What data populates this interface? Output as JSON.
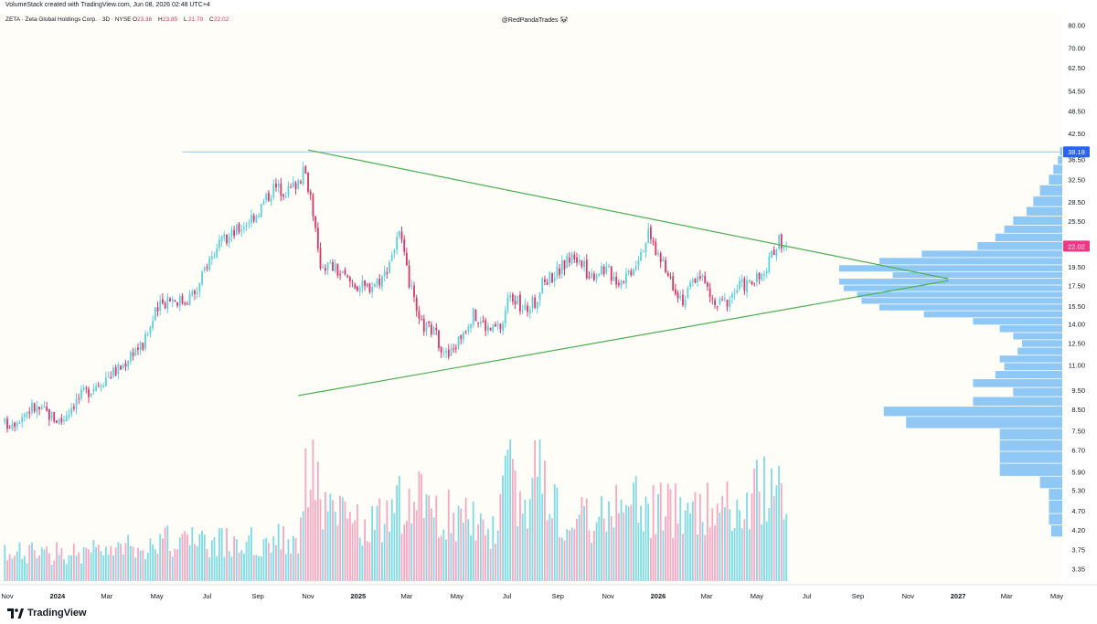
{
  "header": {
    "created_line": "VolumeStack created with TradingView.com, Jun 08, 2026 02:48 UTC+4",
    "symbol_line": "ZETA · Zeta Global Holdings Corp. · 3D · NYSE",
    "ohlc": [
      {
        "key": "O",
        "value": "23.36"
      },
      {
        "key": "H",
        "value": "23.85"
      },
      {
        "key": "L",
        "value": "21.70"
      },
      {
        "key": "C",
        "value": "22.02"
      }
    ],
    "watermark": "@RedPandaTrades 🐼"
  },
  "footer": {
    "brand": "TradingView"
  },
  "colors": {
    "up": "#5fd0dc",
    "down": "#d8386e",
    "vol_up": "#7fdbe6",
    "vol_down": "#f5a9c4",
    "vp": "#90c8f5",
    "trend": "#4caf50",
    "resistance": "#9ec3ee",
    "badge_resistance": "#2962ff",
    "badge_price": "#f23683",
    "background": "#fffdf7"
  },
  "chart_data": {
    "type": "candlestick",
    "symbol": "ZETA",
    "interval": "3D",
    "yscale": "log",
    "ylim": [
      3.05,
      86.0
    ],
    "price_ticks": [
      "80.00",
      "70.00",
      "62.50",
      "54.50",
      "48.50",
      "42.50",
      "36.50",
      "32.50",
      "28.50",
      "25.50",
      "22.50",
      "19.50",
      "17.50",
      "15.50",
      "14.00",
      "12.50",
      "11.00",
      "9.50",
      "8.50",
      "7.50",
      "6.70",
      "5.90",
      "5.30",
      "4.70",
      "4.20",
      "3.75",
      "3.35"
    ],
    "time_ticks": [
      {
        "label": "Nov",
        "date": "2023-11-01",
        "bold": false
      },
      {
        "label": "2024",
        "date": "2024-01-01",
        "bold": true
      },
      {
        "label": "Mar",
        "date": "2024-03-01",
        "bold": false
      },
      {
        "label": "May",
        "date": "2024-05-01",
        "bold": false
      },
      {
        "label": "Jul",
        "date": "2024-07-01",
        "bold": false
      },
      {
        "label": "Sep",
        "date": "2024-09-01",
        "bold": false
      },
      {
        "label": "Nov",
        "date": "2024-11-01",
        "bold": false
      },
      {
        "label": "2025",
        "date": "2025-01-01",
        "bold": true
      },
      {
        "label": "Mar",
        "date": "2025-03-01",
        "bold": false
      },
      {
        "label": "May",
        "date": "2025-05-01",
        "bold": false
      },
      {
        "label": "Jul",
        "date": "2025-07-01",
        "bold": false
      },
      {
        "label": "Sep",
        "date": "2025-09-01",
        "bold": false
      },
      {
        "label": "Nov",
        "date": "2025-11-01",
        "bold": false
      },
      {
        "label": "2026",
        "date": "2026-01-01",
        "bold": true
      },
      {
        "label": "Mar",
        "date": "2026-03-01",
        "bold": false
      },
      {
        "label": "May",
        "date": "2026-05-01",
        "bold": false
      },
      {
        "label": "Jul",
        "date": "2026-07-01",
        "bold": false
      },
      {
        "label": "Sep",
        "date": "2026-09-01",
        "bold": false
      },
      {
        "label": "Nov",
        "date": "2026-11-01",
        "bold": false
      },
      {
        "label": "2027",
        "date": "2027-01-01",
        "bold": true
      },
      {
        "label": "Mar",
        "date": "2027-03-01",
        "bold": false
      },
      {
        "label": "May",
        "date": "2027-05-01",
        "bold": false
      }
    ],
    "price_path": [
      [
        "2023-10-31",
        7.8
      ],
      [
        "2023-11-15",
        8.1
      ],
      [
        "2023-12-01",
        8.6
      ],
      [
        "2023-12-20",
        8.3
      ],
      [
        "2024-01-05",
        7.9
      ],
      [
        "2024-01-20",
        8.8
      ],
      [
        "2024-02-10",
        9.6
      ],
      [
        "2024-03-01",
        10.3
      ],
      [
        "2024-03-20",
        10.9
      ],
      [
        "2024-04-01",
        12.0
      ],
      [
        "2024-04-15",
        12.4
      ],
      [
        "2024-04-30",
        15.0
      ],
      [
        "2024-05-15",
        16.4
      ],
      [
        "2024-06-01",
        16.0
      ],
      [
        "2024-06-20",
        17.0
      ],
      [
        "2024-07-01",
        20.0
      ],
      [
        "2024-07-20",
        22.5
      ],
      [
        "2024-08-10",
        24.5
      ],
      [
        "2024-09-01",
        27.0
      ],
      [
        "2024-09-20",
        31.0
      ],
      [
        "2024-10-10",
        30.5
      ],
      [
        "2024-10-28",
        34.0
      ],
      [
        "2024-11-05",
        29.0
      ],
      [
        "2024-11-14",
        20.0
      ],
      [
        "2024-12-01",
        19.5
      ],
      [
        "2024-12-20",
        18.0
      ],
      [
        "2025-01-10",
        17.2
      ],
      [
        "2025-02-01",
        18.5
      ],
      [
        "2025-02-20",
        23.5
      ],
      [
        "2025-03-01",
        19.0
      ],
      [
        "2025-03-15",
        14.0
      ],
      [
        "2025-04-01",
        13.5
      ],
      [
        "2025-04-20",
        11.5
      ],
      [
        "2025-05-01",
        12.5
      ],
      [
        "2025-05-20",
        14.8
      ],
      [
        "2025-06-10",
        13.5
      ],
      [
        "2025-06-25",
        13.8
      ],
      [
        "2025-07-05",
        17.0
      ],
      [
        "2025-07-20",
        15.0
      ],
      [
        "2025-08-05",
        16.0
      ],
      [
        "2025-08-15",
        18.0
      ],
      [
        "2025-09-01",
        19.0
      ],
      [
        "2025-09-20",
        21.0
      ],
      [
        "2025-10-10",
        18.5
      ],
      [
        "2025-10-25",
        19.5
      ],
      [
        "2025-11-15",
        18.0
      ],
      [
        "2025-12-01",
        19.5
      ],
      [
        "2025-12-20",
        23.5
      ],
      [
        "2026-01-10",
        19.0
      ],
      [
        "2026-02-01",
        16.0
      ],
      [
        "2026-02-20",
        19.0
      ],
      [
        "2026-03-10",
        15.5
      ],
      [
        "2026-03-25",
        16.0
      ],
      [
        "2026-04-10",
        17.5
      ],
      [
        "2026-04-25",
        17.8
      ],
      [
        "2026-05-10",
        18.5
      ],
      [
        "2026-05-20",
        21.0
      ],
      [
        "2026-05-28",
        23.0
      ],
      [
        "2026-06-06",
        22.02
      ]
    ],
    "volume_path": [
      [
        "2023-10-31",
        0.2
      ],
      [
        "2024-03-01",
        0.22
      ],
      [
        "2024-05-01",
        0.3
      ],
      [
        "2024-08-01",
        0.28
      ],
      [
        "2024-10-20",
        0.32
      ],
      [
        "2024-11-04",
        1.0
      ],
      [
        "2024-11-15",
        0.6
      ],
      [
        "2024-12-10",
        0.45
      ],
      [
        "2025-01-20",
        0.4
      ],
      [
        "2025-03-01",
        0.62
      ],
      [
        "2025-04-15",
        0.5
      ],
      [
        "2025-05-10",
        0.45
      ],
      [
        "2025-06-20",
        0.4
      ],
      [
        "2025-07-05",
        0.85
      ],
      [
        "2025-07-20",
        0.5
      ],
      [
        "2025-08-10",
        0.92
      ],
      [
        "2025-09-10",
        0.4
      ],
      [
        "2025-10-20",
        0.5
      ],
      [
        "2025-11-10",
        0.6
      ],
      [
        "2025-12-20",
        0.55
      ],
      [
        "2026-02-01",
        0.5
      ],
      [
        "2026-03-10",
        0.55
      ],
      [
        "2026-04-15",
        0.5
      ],
      [
        "2026-05-10",
        0.75
      ],
      [
        "2026-06-06",
        0.6
      ]
    ],
    "volume_profile": [
      [
        38.18,
        0.01
      ],
      [
        36.5,
        0.02
      ],
      [
        34.5,
        0.04
      ],
      [
        32.5,
        0.06
      ],
      [
        30.5,
        0.1
      ],
      [
        28.5,
        0.13
      ],
      [
        27.0,
        0.16
      ],
      [
        25.5,
        0.22
      ],
      [
        24.3,
        0.26
      ],
      [
        23.2,
        0.3
      ],
      [
        22.0,
        0.38
      ],
      [
        21.0,
        0.63
      ],
      [
        20.2,
        0.82
      ],
      [
        19.3,
        1.0
      ],
      [
        18.6,
        0.76
      ],
      [
        17.9,
        1.0
      ],
      [
        17.2,
        0.98
      ],
      [
        16.6,
        0.92
      ],
      [
        16.0,
        0.9
      ],
      [
        15.4,
        0.82
      ],
      [
        14.8,
        0.62
      ],
      [
        14.2,
        0.4
      ],
      [
        13.6,
        0.28
      ],
      [
        13.0,
        0.22
      ],
      [
        12.5,
        0.18
      ],
      [
        11.9,
        0.2
      ],
      [
        11.4,
        0.28
      ],
      [
        10.9,
        0.26
      ],
      [
        10.4,
        0.3
      ],
      [
        9.9,
        0.4
      ],
      [
        9.4,
        0.22
      ],
      [
        8.9,
        0.4
      ],
      [
        8.4,
        0.8
      ],
      [
        7.9,
        0.7
      ],
      [
        7.3,
        0.28
      ],
      [
        6.9,
        0.28
      ],
      [
        6.4,
        0.28
      ],
      [
        6.0,
        0.28
      ],
      [
        5.5,
        0.1
      ],
      [
        5.2,
        0.06
      ],
      [
        4.8,
        0.06
      ],
      [
        4.45,
        0.06
      ],
      [
        4.2,
        0.05
      ]
    ],
    "trendlines": [
      {
        "name": "upper",
        "from": [
          "2024-11-01",
          38.6
        ],
        "to": [
          "2026-12-20",
          18.2
        ]
      },
      {
        "name": "lower",
        "from": [
          "2024-10-20",
          9.2
        ],
        "to": [
          "2026-12-20",
          18.0
        ]
      }
    ],
    "resistance": {
      "price": 38.18,
      "from": "2024-06-01",
      "label": "38.18"
    },
    "last_price": {
      "price": 22.02,
      "label": "22.02"
    }
  }
}
